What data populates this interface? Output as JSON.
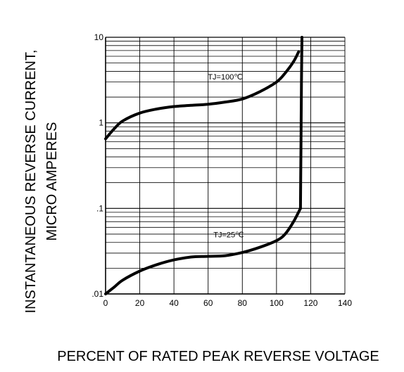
{
  "chart_data": {
    "type": "line",
    "y_scale": "log",
    "xlabel": "PERCENT OF RATED PEAK REVERSE VOLTAGE",
    "ylabel_lines": [
      "INSTANTANEOUS REVERSE CURRENT,",
      "MICRO AMPERES"
    ],
    "xlim": [
      0,
      140
    ],
    "ylim": [
      0.01,
      10
    ],
    "x_ticks": [
      0,
      20,
      40,
      60,
      80,
      100,
      120,
      140
    ],
    "x_tick_labels": [
      "0",
      "20",
      "40",
      "60",
      "80",
      "100",
      "120",
      "140"
    ],
    "y_ticks": [
      0.01,
      0.1,
      1,
      10
    ],
    "y_tick_labels": [
      ".01",
      ".1",
      "1",
      "10"
    ],
    "grid": true,
    "series": [
      {
        "name": "TJ=100℃",
        "label_at": {
          "x": 70,
          "y": 3.2
        },
        "points": [
          [
            0,
            0.65
          ],
          [
            5,
            0.85
          ],
          [
            10,
            1.05
          ],
          [
            20,
            1.3
          ],
          [
            30,
            1.45
          ],
          [
            40,
            1.55
          ],
          [
            50,
            1.6
          ],
          [
            60,
            1.65
          ],
          [
            70,
            1.75
          ],
          [
            80,
            1.9
          ],
          [
            90,
            2.3
          ],
          [
            100,
            3.0
          ],
          [
            105,
            3.8
          ],
          [
            110,
            5.2
          ],
          [
            113,
            6.8
          ]
        ]
      },
      {
        "name": "TJ=25℃",
        "label_at": {
          "x": 72,
          "y": 0.046
        },
        "points": [
          [
            0,
            0.01
          ],
          [
            5,
            0.012
          ],
          [
            10,
            0.0145
          ],
          [
            20,
            0.0185
          ],
          [
            30,
            0.022
          ],
          [
            40,
            0.025
          ],
          [
            50,
            0.027
          ],
          [
            60,
            0.0275
          ],
          [
            70,
            0.028
          ],
          [
            80,
            0.0305
          ],
          [
            90,
            0.035
          ],
          [
            100,
            0.042
          ],
          [
            105,
            0.05
          ],
          [
            110,
            0.07
          ],
          [
            114,
            0.1
          ]
        ]
      },
      {
        "name": "",
        "points": [
          [
            114,
            0.1
          ],
          [
            114.3,
            0.5
          ],
          [
            114.6,
            3
          ],
          [
            114.9,
            10
          ]
        ]
      }
    ]
  }
}
